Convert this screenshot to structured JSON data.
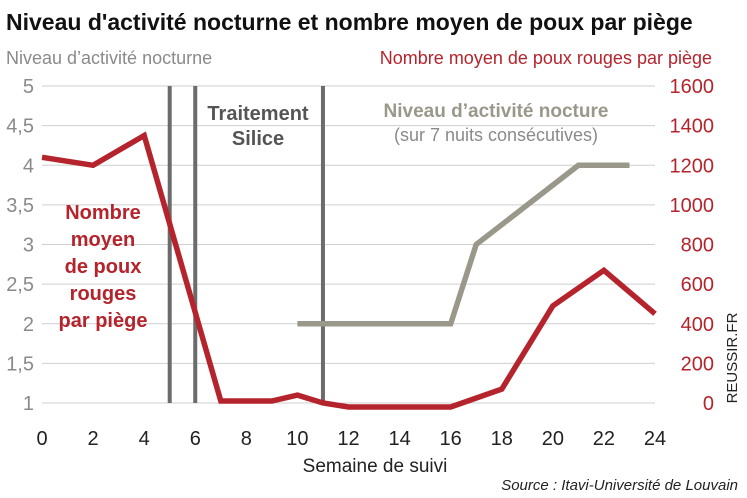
{
  "chart_data": {
    "type": "line",
    "title": "Niveau d'activité nocturne et nombre moyen de poux par piège",
    "xlabel": "Semaine de suivi",
    "ylabel_left": "Niveau d’activité nocturne",
    "ylabel_right": "Nombre moyen de poux rouges par piège",
    "xlim": [
      0,
      24
    ],
    "ylim_left": [
      1,
      5
    ],
    "ylim_right": [
      0,
      1600
    ],
    "x_ticks": [
      "0",
      "2",
      "4",
      "6",
      "8",
      "10",
      "12",
      "14",
      "16",
      "18",
      "20",
      "22",
      "24"
    ],
    "y_left_ticks": [
      "1",
      "1,5",
      "2",
      "2,5",
      "3",
      "3,5",
      "4",
      "4,5",
      "5"
    ],
    "y_right_ticks": [
      "0",
      "200",
      "400",
      "600",
      "800",
      "1000",
      "1200",
      "1400",
      "1600"
    ],
    "treatment_weeks": [
      5,
      6,
      11
    ],
    "treatment_label": [
      "Traitement",
      "Silice"
    ],
    "series": [
      {
        "name": "Nombre moyen de poux rouges par piège",
        "axis": "right",
        "color": "#b5242c",
        "x": [
          0,
          2,
          4,
          7,
          9,
          10,
          11,
          12,
          16,
          18,
          20,
          22,
          24
        ],
        "y": [
          1240,
          1200,
          1350,
          10,
          10,
          40,
          0,
          -20,
          -20,
          70,
          490,
          670,
          450
        ]
      },
      {
        "name": "Niveau d’activité nocture",
        "axis": "left",
        "color": "#9a988a",
        "x": [
          10,
          16,
          17,
          21,
          23
        ],
        "y": [
          2,
          2,
          3,
          4,
          4
        ]
      }
    ],
    "annotations": {
      "red_label": [
        "Nombre",
        "moyen",
        "de poux",
        "rouges",
        "par piège"
      ],
      "gray_label": "Niveau d’activité nocture",
      "gray_sublabel": "(sur 7 nuits consécutives)"
    },
    "credit": "REUSSIR.FR",
    "source": "Source : Itavi-Université de Louvain",
    "colors": {
      "red": "#b5242c",
      "gray_line": "#9a988a",
      "treatment_bar": "#6b6b6b",
      "grid": "#cfcfcf"
    }
  }
}
